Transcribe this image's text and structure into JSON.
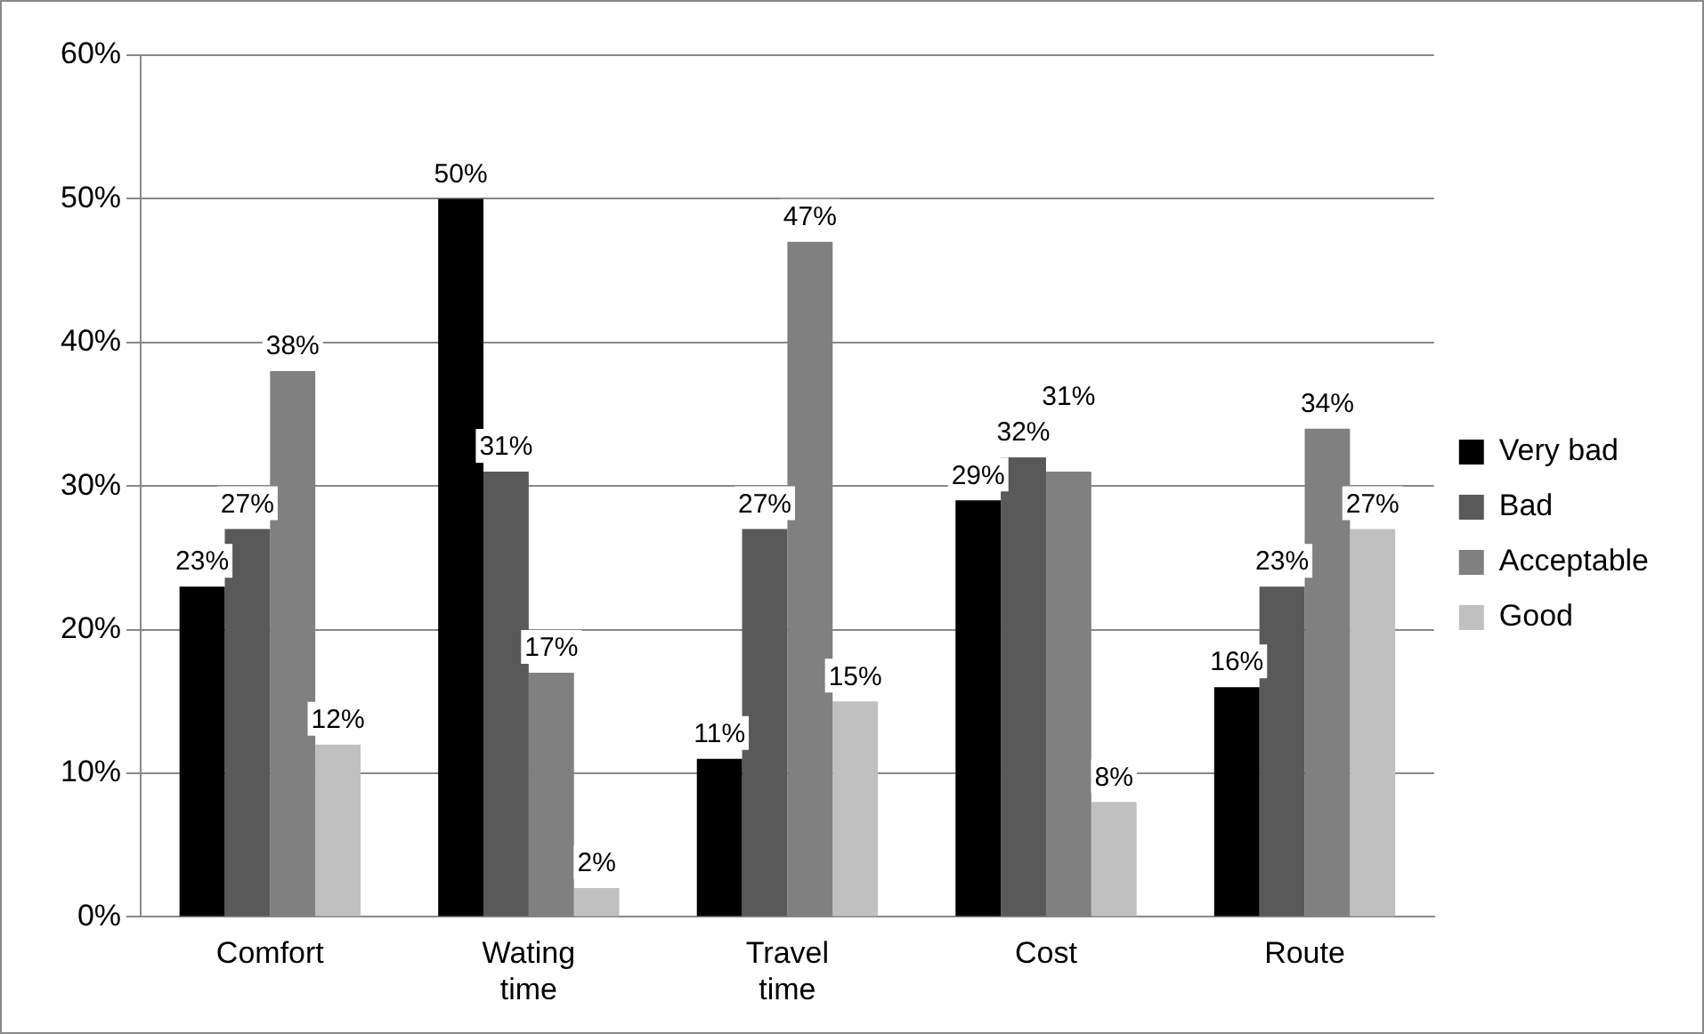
{
  "chart_data": {
    "type": "bar",
    "categories": [
      "Comfort",
      "Wating time",
      "Travel time",
      "Cost",
      "Route"
    ],
    "series": [
      {
        "name": "Very bad",
        "color": "#000000",
        "values": [
          23,
          50,
          11,
          29,
          16
        ],
        "value_labels": [
          "23%",
          "50%",
          "11%",
          "29%",
          "16%"
        ]
      },
      {
        "name": "Bad",
        "color": "#595959",
        "values": [
          27,
          31,
          27,
          32,
          23
        ],
        "value_labels": [
          "27%",
          "31%",
          "27%",
          "32%",
          "23%"
        ]
      },
      {
        "name": "Acceptable",
        "color": "#808080",
        "values": [
          38,
          17,
          47,
          31,
          34
        ],
        "value_labels": [
          "38%",
          "17%",
          "47%",
          "31%",
          "34%"
        ]
      },
      {
        "name": "Good",
        "color": "#c0c0c0",
        "values": [
          12,
          2,
          15,
          8,
          27
        ],
        "value_labels": [
          "12%",
          "2%",
          "15%",
          "8%",
          "27%"
        ]
      }
    ],
    "ylim": [
      0,
      60
    ],
    "yticks": [
      {
        "value": 0,
        "label": "0%"
      },
      {
        "value": 10,
        "label": "10%"
      },
      {
        "value": 20,
        "label": "20%"
      },
      {
        "value": 30,
        "label": "30%"
      },
      {
        "value": 40,
        "label": "40%"
      },
      {
        "value": 50,
        "label": "50%"
      },
      {
        "value": 60,
        "label": "60%"
      }
    ],
    "grid": "y",
    "legend": "right"
  }
}
